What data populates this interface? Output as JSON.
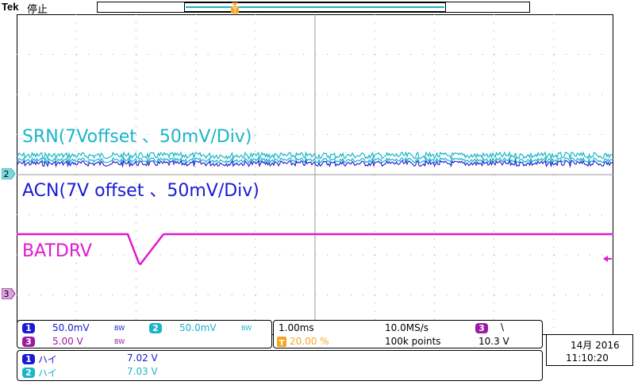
{
  "header": {
    "brand": "Tek",
    "run_state": "停止"
  },
  "trigger": {
    "marker_label": "T"
  },
  "traces": {
    "srn_label": "SRN(7Voffset 、50mV/Div)",
    "acn_label": "ACN(7V offset 、50mV/Div)",
    "batdrv_label": "BATDRV"
  },
  "channel_markers": {
    "ch2": "2",
    "ch3": "3"
  },
  "channels": [
    {
      "number": "1",
      "scale": "50.0mV",
      "bw": "BW",
      "color": "#1a1ad4"
    },
    {
      "number": "2",
      "scale": "50.0mV",
      "bw": "BW",
      "color": "#1ab5c9"
    },
    {
      "number": "3",
      "scale": "5.00 V",
      "bw": "BW",
      "color": "#9b1aa3"
    }
  ],
  "timebase": {
    "time_per_div": "1.00ms",
    "sample_rate": "10.0MS/s",
    "trigger_position": "20.00 %",
    "record_length": "100k points",
    "trigger_channel": "3",
    "trigger_slope": "\\",
    "trigger_level": "10.3 V"
  },
  "measurements": [
    {
      "channel": "1",
      "name": "ハイ",
      "value": "7.02 V",
      "color": "#1a1ad4"
    },
    {
      "channel": "2",
      "name": "ハイ",
      "value": "7.03 V",
      "color": "#1ab5c9"
    }
  ],
  "datetime": {
    "date": "14月 2016",
    "time": "11:10:20"
  },
  "colors": {
    "ch1": "#1a1ad4",
    "ch2": "#1ab5c9",
    "ch3": "#e01ad0",
    "trigger": "#f5a623"
  }
}
